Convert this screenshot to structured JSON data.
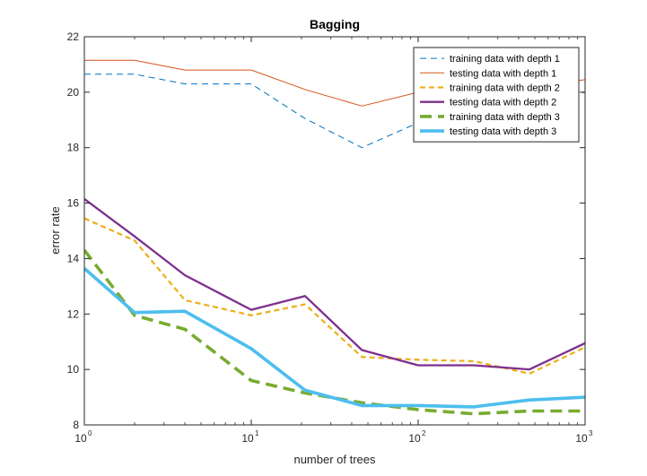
{
  "chart_data": {
    "type": "line",
    "title": "Bagging",
    "xlabel": "number of trees",
    "ylabel": "error rate",
    "xscale": "log",
    "xlim": [
      1,
      1000
    ],
    "ylim": [
      8,
      22
    ],
    "xticks": [
      1,
      10,
      100,
      1000
    ],
    "xtick_labels": [
      {
        "base": "10",
        "exp": "0"
      },
      {
        "base": "10",
        "exp": "1"
      },
      {
        "base": "10",
        "exp": "2"
      },
      {
        "base": "10",
        "exp": "3"
      }
    ],
    "yticks": [
      8,
      10,
      12,
      14,
      16,
      18,
      20,
      22
    ],
    "ytick_labels": [
      "8",
      "10",
      "12",
      "14",
      "16",
      "18",
      "20",
      "22"
    ],
    "grid": false,
    "legend_position": "top-right",
    "x": [
      1,
      2,
      4,
      10,
      21,
      46,
      100,
      215,
      464,
      1000
    ],
    "series": [
      {
        "name": "training data with depth 1",
        "color": "#0072BD",
        "style": "dashed",
        "width": "thin",
        "values": [
          20.65,
          20.65,
          20.3,
          20.3,
          19.05,
          18.0,
          18.9,
          19.5,
          19.3,
          20.0
        ]
      },
      {
        "name": "testing data with depth 1",
        "color": "#D95319",
        "style": "solid",
        "width": "thin",
        "values": [
          21.15,
          21.15,
          20.8,
          20.8,
          20.1,
          19.5,
          20.0,
          20.4,
          20.2,
          20.45
        ]
      },
      {
        "name": "training data with depth 2",
        "color": "#EDB120",
        "style": "dashed",
        "width": "medium",
        "values": [
          15.45,
          14.65,
          12.5,
          11.95,
          12.35,
          10.45,
          10.35,
          10.3,
          9.85,
          10.8
        ]
      },
      {
        "name": "testing data with depth 2",
        "color": "#7E2F8E",
        "style": "solid",
        "width": "medium",
        "values": [
          16.15,
          14.8,
          13.4,
          12.15,
          12.65,
          10.7,
          10.15,
          10.15,
          10.0,
          10.95
        ]
      },
      {
        "name": "training data with depth 3",
        "color": "#77AC30",
        "style": "dashed",
        "width": "thick",
        "values": [
          14.3,
          11.95,
          11.45,
          9.6,
          9.15,
          8.8,
          8.55,
          8.4,
          8.5,
          8.5
        ]
      },
      {
        "name": "testing data with depth 3",
        "color": "#4DBEEE",
        "style": "solid",
        "width": "thick",
        "values": [
          13.65,
          12.05,
          12.1,
          10.75,
          9.25,
          8.7,
          8.7,
          8.65,
          8.9,
          9.0
        ]
      }
    ]
  }
}
